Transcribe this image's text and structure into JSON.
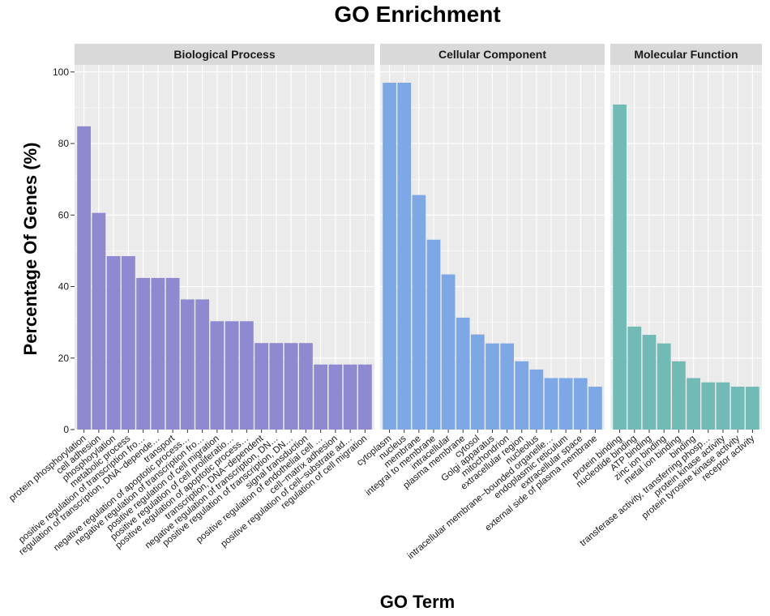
{
  "chart_data": {
    "type": "bar",
    "title": "GO Enrichment",
    "xlabel": "GO Term",
    "ylabel": "Percentage Of Genes (%)",
    "ylim": [
      0,
      102
    ],
    "yticks": [
      0,
      20,
      40,
      60,
      80,
      100
    ],
    "grid": true,
    "panels": [
      {
        "name": "Biological Process",
        "color": "#8e89d0",
        "categories": [
          "protein phosphorylation",
          "cell adhesion",
          "phosphorylation",
          "metabolic process",
          "positive regulation of transcription fro…",
          "regulation of transcription, DNA−depende…",
          "transport",
          "negative regulation of apoptotic process…",
          "negative regulation of transcription fro…",
          "positive regulation of cell migration",
          "positive regulation of cell proliferatio…",
          "positive regulation of apoptotic process…",
          "transcription, DNA−dependent",
          "negative regulation of transcription, DN…",
          "positive regulation of transcription, DN…",
          "signal transduction",
          "positive regulation of endothelial cell …",
          "cell−matrix adhesion",
          "positive regulation of cell−substrate ad…",
          "regulation of cell migration"
        ],
        "values": [
          84.8,
          60.6,
          48.5,
          48.5,
          42.4,
          42.4,
          42.4,
          36.4,
          36.4,
          30.3,
          30.3,
          30.3,
          24.2,
          24.2,
          24.2,
          24.2,
          18.2,
          18.2,
          18.2,
          18.2
        ]
      },
      {
        "name": "Cellular Component",
        "color": "#7ea7e6",
        "categories": [
          "cytoplasm",
          "nucleus",
          "membrane",
          "integral to membrane",
          "intracellular",
          "plasma membrane",
          "cytosol",
          "Golgi apparatus",
          "mitochondrion",
          "extracellular region",
          "nucleolus",
          "intracellular membrane−bounded organelle…",
          "endoplasmic reticulum",
          "extracellular space",
          "external side of plasma membrane"
        ],
        "values": [
          97.0,
          97.0,
          65.6,
          53.1,
          43.4,
          31.3,
          26.6,
          24.1,
          24.1,
          19.1,
          16.8,
          14.4,
          14.4,
          14.4,
          12.0
        ]
      },
      {
        "name": "Molecular Function",
        "color": "#72bab5",
        "categories": [
          "protein binding",
          "nucleotide binding",
          "ATP binding",
          "zinc ion binding",
          "metal ion binding",
          "binding",
          "transferase activity, transferring phosp…",
          "protein kinase activity",
          "protein tyrosine kinase activity",
          "receptor activity"
        ],
        "values": [
          90.9,
          28.8,
          26.5,
          24.1,
          19.1,
          14.4,
          13.2,
          13.2,
          12.0,
          12.0
        ]
      }
    ]
  }
}
